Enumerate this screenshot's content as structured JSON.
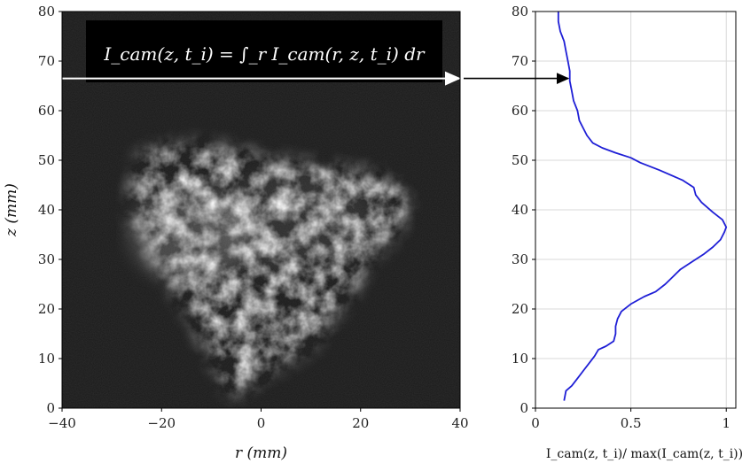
{
  "chart_data": [
    {
      "type": "heatmap",
      "xlabel": "r (mm)",
      "ylabel": "z (mm)",
      "xlim": [
        -40,
        40
      ],
      "ylim": [
        0,
        80
      ],
      "x_ticks": [
        "−40",
        "−20",
        "0",
        "20",
        "40"
      ],
      "y_ticks": [
        "0",
        "10",
        "20",
        "30",
        "40",
        "50",
        "60",
        "70",
        "80"
      ],
      "annotation": "I_cam(z, t_i) = ∫_r I_cam(r, z, t_i) dr",
      "marker_z": 66.5
    },
    {
      "type": "line",
      "xlabel": "I_cam(z, t_i)/ max(I_cam(z, t_i))",
      "ylabel": "",
      "xlim": [
        0,
        1.05
      ],
      "ylim": [
        0,
        80
      ],
      "grid": true,
      "x_ticks": [
        "0",
        "0.5",
        "1"
      ],
      "y_ticks": [
        "0",
        "10",
        "20",
        "30",
        "40",
        "50",
        "60",
        "70",
        "80"
      ],
      "arrow_z": 66.5,
      "series": [
        {
          "color": "#1f1fd6",
          "points": [
            [
              0.15,
              1.5
            ],
            [
              0.16,
              3.5
            ],
            [
              0.19,
              4.5
            ],
            [
              0.22,
              6
            ],
            [
              0.25,
              7.5
            ],
            [
              0.28,
              9
            ],
            [
              0.31,
              10.5
            ],
            [
              0.33,
              11.8
            ],
            [
              0.37,
              12.5
            ],
            [
              0.41,
              13.5
            ],
            [
              0.42,
              15
            ],
            [
              0.42,
              16.5
            ],
            [
              0.43,
              18
            ],
            [
              0.45,
              19.5
            ],
            [
              0.5,
              21
            ],
            [
              0.57,
              22.5
            ],
            [
              0.63,
              23.5
            ],
            [
              0.68,
              25
            ],
            [
              0.72,
              26.5
            ],
            [
              0.76,
              28
            ],
            [
              0.82,
              29.5
            ],
            [
              0.88,
              31
            ],
            [
              0.93,
              32.5
            ],
            [
              0.97,
              34
            ],
            [
              0.99,
              35.5
            ],
            [
              1.0,
              36.5
            ],
            [
              0.98,
              38
            ],
            [
              0.93,
              39.5
            ],
            [
              0.87,
              41.5
            ],
            [
              0.84,
              43
            ],
            [
              0.83,
              44.5
            ],
            [
              0.77,
              46
            ],
            [
              0.65,
              48
            ],
            [
              0.55,
              49.5
            ],
            [
              0.5,
              50.5
            ],
            [
              0.42,
              51.5
            ],
            [
              0.35,
              52.5
            ],
            [
              0.3,
              53.5
            ],
            [
              0.27,
              55
            ],
            [
              0.25,
              56.5
            ],
            [
              0.23,
              58
            ],
            [
              0.22,
              60
            ],
            [
              0.2,
              62
            ],
            [
              0.19,
              64
            ],
            [
              0.18,
              66
            ],
            [
              0.18,
              68
            ],
            [
              0.17,
              70
            ],
            [
              0.16,
              72
            ],
            [
              0.15,
              74
            ],
            [
              0.13,
              76
            ],
            [
              0.12,
              78
            ],
            [
              0.12,
              80
            ]
          ]
        }
      ]
    }
  ]
}
